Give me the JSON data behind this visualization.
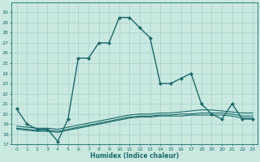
{
  "title": "",
  "xlabel": "Humidex (Indice chaleur)",
  "ylabel": "",
  "xlim": [
    -0.5,
    23.5
  ],
  "ylim": [
    17,
    31
  ],
  "yticks": [
    17,
    18,
    19,
    20,
    21,
    22,
    23,
    24,
    25,
    26,
    27,
    28,
    29,
    30
  ],
  "xticks": [
    0,
    1,
    2,
    3,
    4,
    5,
    6,
    7,
    8,
    9,
    10,
    11,
    12,
    13,
    14,
    15,
    16,
    17,
    18,
    19,
    20,
    21,
    22,
    23
  ],
  "bg_color": "#c8e8e0",
  "line_color": "#1a6b6b",
  "grid_color": "#a0ccc8",
  "main_x": [
    0,
    1,
    2,
    3,
    4,
    5,
    6,
    7,
    8,
    9,
    10,
    11,
    12,
    13,
    14,
    15,
    16,
    17,
    18,
    19,
    20,
    21,
    22,
    23
  ],
  "main_y": [
    20.5,
    19.0,
    18.5,
    18.5,
    17.3,
    19.5,
    25.5,
    25.5,
    27.0,
    27.0,
    29.5,
    29.5,
    28.5,
    27.5,
    23.0,
    23.0,
    23.5,
    24.0,
    21.0,
    20.0,
    19.5,
    21.0,
    19.5,
    19.5
  ],
  "line2_x": [
    0,
    1,
    2,
    3,
    4,
    5,
    6,
    7,
    8,
    9,
    10,
    11,
    12,
    13,
    14,
    15,
    16,
    17,
    18,
    19,
    20,
    21,
    22,
    23
  ],
  "line2_y": [
    18.5,
    18.4,
    18.3,
    18.3,
    18.2,
    18.4,
    18.6,
    18.8,
    19.0,
    19.2,
    19.4,
    19.6,
    19.7,
    19.7,
    19.8,
    19.8,
    19.8,
    19.9,
    19.9,
    19.9,
    19.9,
    19.8,
    19.6,
    19.6
  ],
  "line3_x": [
    0,
    1,
    2,
    3,
    4,
    5,
    6,
    7,
    8,
    9,
    10,
    11,
    12,
    13,
    14,
    15,
    16,
    17,
    18,
    19,
    20,
    21,
    22,
    23
  ],
  "line3_y": [
    18.8,
    18.7,
    18.6,
    18.6,
    18.5,
    18.7,
    18.9,
    19.1,
    19.3,
    19.5,
    19.7,
    19.9,
    20.0,
    20.0,
    20.1,
    20.1,
    20.2,
    20.3,
    20.4,
    20.4,
    20.3,
    20.2,
    20.1,
    20.1
  ],
  "line4_x": [
    0,
    1,
    2,
    3,
    4,
    5,
    6,
    7,
    8,
    9,
    10,
    11,
    12,
    13,
    14,
    15,
    16,
    17,
    18,
    19,
    20,
    21,
    22,
    23
  ],
  "line4_y": [
    18.6,
    18.5,
    18.4,
    18.4,
    18.3,
    18.5,
    18.7,
    18.9,
    19.1,
    19.3,
    19.5,
    19.7,
    19.8,
    19.8,
    19.9,
    19.9,
    20.0,
    20.0,
    20.1,
    20.1,
    20.1,
    20.0,
    19.8,
    19.8
  ]
}
